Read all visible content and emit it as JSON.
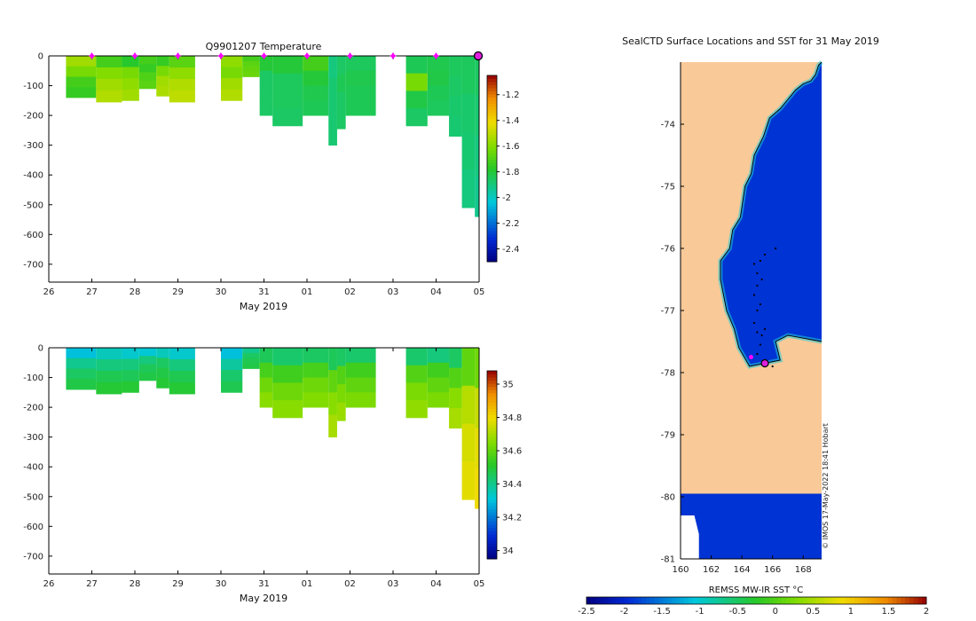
{
  "chart_data": [
    {
      "type": "heatmap",
      "id": "temperature",
      "title": "Q9901207  Temperature",
      "xlabel": "May 2019",
      "ylabel": "",
      "x_ticks": [
        "26",
        "27",
        "28",
        "29",
        "30",
        "31",
        "01",
        "02",
        "03",
        "04",
        "05"
      ],
      "y_ticks": [
        0,
        -100,
        -200,
        -300,
        -400,
        -500,
        -600,
        -700
      ],
      "xlim": [
        26,
        36
      ],
      "ylim": [
        -760,
        0
      ],
      "colorbar": {
        "range": [
          -2.5,
          -1.05
        ],
        "ticks": [
          -1.2,
          -1.4,
          -1.6,
          -1.8,
          -2,
          -2.2,
          -2.4
        ]
      },
      "profile_markers_day": [
        27,
        28,
        29,
        30,
        31,
        32,
        33,
        34,
        35
      ],
      "latest_marker_day": 36,
      "profiles": [
        {
          "x0": 26.4,
          "x1": 27.1,
          "depth": 140,
          "values": [
            -1.55,
            -1.62,
            -1.72,
            -1.75
          ]
        },
        {
          "x0": 27.1,
          "x1": 27.7,
          "depth": 155,
          "values": [
            -1.72,
            -1.6,
            -1.55,
            -1.52
          ]
        },
        {
          "x0": 27.7,
          "x1": 28.1,
          "depth": 150,
          "values": [
            -1.78,
            -1.62,
            -1.58,
            -1.55
          ]
        },
        {
          "x0": 28.1,
          "x1": 28.5,
          "depth": 110,
          "values": [
            -1.72,
            -1.75,
            -1.7,
            -1.68
          ]
        },
        {
          "x0": 28.5,
          "x1": 28.8,
          "depth": 135,
          "values": [
            -1.75,
            -1.62,
            -1.55,
            -1.53
          ]
        },
        {
          "x0": 28.8,
          "x1": 29.4,
          "depth": 155,
          "values": [
            -1.68,
            -1.58,
            -1.52,
            -1.5
          ]
        },
        {
          "x0": 30.0,
          "x1": 30.5,
          "depth": 150,
          "values": [
            -1.58,
            -1.62,
            -1.55,
            -1.52
          ]
        },
        {
          "x0": 30.5,
          "x1": 30.9,
          "depth": 70,
          "values": [
            -1.72,
            -1.68,
            -1.66,
            -1.65
          ]
        },
        {
          "x0": 30.9,
          "x1": 31.2,
          "depth": 200,
          "values": [
            -1.8,
            -1.86,
            -1.86,
            -1.86
          ]
        },
        {
          "x0": 31.2,
          "x1": 31.9,
          "depth": 235,
          "values": [
            -1.8,
            -1.85,
            -1.85,
            -1.86
          ]
        },
        {
          "x0": 31.9,
          "x1": 32.5,
          "depth": 200,
          "values": [
            -1.72,
            -1.8,
            -1.83,
            -1.84
          ]
        },
        {
          "x0": 32.5,
          "x1": 32.7,
          "depth": 300,
          "values": [
            -1.9,
            -1.88,
            -1.88,
            -1.88
          ]
        },
        {
          "x0": 32.7,
          "x1": 32.9,
          "depth": 245,
          "values": [
            -1.86,
            -1.84,
            -1.86,
            -1.86
          ]
        },
        {
          "x0": 32.9,
          "x1": 33.6,
          "depth": 200,
          "values": [
            -1.85,
            -1.83,
            -1.84,
            -1.84
          ]
        },
        {
          "x0": 34.3,
          "x1": 34.8,
          "depth": 235,
          "values": [
            -1.84,
            -1.62,
            -1.82,
            -1.86
          ]
        },
        {
          "x0": 34.8,
          "x1": 35.3,
          "depth": 200,
          "values": [
            -1.83,
            -1.82,
            -1.84,
            -1.85
          ]
        },
        {
          "x0": 35.3,
          "x1": 35.6,
          "depth": 270,
          "values": [
            -1.85,
            -1.86,
            -1.87,
            -1.88
          ]
        },
        {
          "x0": 35.6,
          "x1": 35.9,
          "depth": 510,
          "values": [
            -1.85,
            -1.87,
            -1.88,
            -1.9
          ]
        },
        {
          "x0": 35.9,
          "x1": 36.0,
          "depth": 540,
          "values": [
            -1.86,
            -1.88,
            -1.9,
            -1.92
          ]
        }
      ]
    },
    {
      "type": "heatmap",
      "id": "salinity",
      "title": "",
      "xlabel": "May 2019",
      "ylabel": "",
      "x_ticks": [
        "26",
        "27",
        "28",
        "29",
        "30",
        "31",
        "01",
        "02",
        "03",
        "04",
        "05"
      ],
      "y_ticks": [
        0,
        -100,
        -200,
        -300,
        -400,
        -500,
        -600,
        -700
      ],
      "xlim": [
        26,
        36
      ],
      "ylim": [
        -760,
        0
      ],
      "colorbar": {
        "range": [
          33.95,
          35.08
        ],
        "ticks": [
          35,
          34.8,
          34.6,
          34.4,
          34.2,
          34
        ]
      },
      "profiles": [
        {
          "x0": 26.4,
          "x1": 27.1,
          "depth": 140,
          "values": [
            34.3,
            34.4,
            34.45,
            34.48
          ]
        },
        {
          "x0": 27.1,
          "x1": 27.7,
          "depth": 155,
          "values": [
            34.35,
            34.42,
            34.47,
            34.5
          ]
        },
        {
          "x0": 27.7,
          "x1": 28.1,
          "depth": 150,
          "values": [
            34.33,
            34.42,
            34.46,
            34.5
          ]
        },
        {
          "x0": 28.1,
          "x1": 28.5,
          "depth": 110,
          "values": [
            34.32,
            34.42,
            34.46,
            34.48
          ]
        },
        {
          "x0": 28.5,
          "x1": 28.8,
          "depth": 135,
          "values": [
            34.35,
            34.45,
            34.48,
            34.5
          ]
        },
        {
          "x0": 28.8,
          "x1": 29.4,
          "depth": 155,
          "values": [
            34.33,
            34.42,
            34.47,
            34.5
          ]
        },
        {
          "x0": 30.0,
          "x1": 30.5,
          "depth": 150,
          "values": [
            34.3,
            34.38,
            34.44,
            34.47
          ]
        },
        {
          "x0": 30.5,
          "x1": 30.9,
          "depth": 70,
          "values": [
            34.4,
            34.45,
            34.47,
            34.48
          ]
        },
        {
          "x0": 30.9,
          "x1": 31.2,
          "depth": 200,
          "values": [
            34.46,
            34.56,
            34.62,
            34.66
          ]
        },
        {
          "x0": 31.2,
          "x1": 31.9,
          "depth": 235,
          "values": [
            34.44,
            34.55,
            34.62,
            34.66
          ]
        },
        {
          "x0": 31.9,
          "x1": 32.5,
          "depth": 200,
          "values": [
            34.45,
            34.56,
            34.62,
            34.65
          ]
        },
        {
          "x0": 32.5,
          "x1": 32.7,
          "depth": 300,
          "values": [
            34.46,
            34.6,
            34.66,
            34.7
          ]
        },
        {
          "x0": 32.7,
          "x1": 32.9,
          "depth": 245,
          "values": [
            34.45,
            34.58,
            34.64,
            34.68
          ]
        },
        {
          "x0": 32.9,
          "x1": 33.6,
          "depth": 200,
          "values": [
            34.44,
            34.55,
            34.6,
            34.64
          ]
        },
        {
          "x0": 34.3,
          "x1": 34.8,
          "depth": 235,
          "values": [
            34.44,
            34.58,
            34.64,
            34.67
          ]
        },
        {
          "x0": 34.8,
          "x1": 35.3,
          "depth": 200,
          "values": [
            34.42,
            34.55,
            34.6,
            34.64
          ]
        },
        {
          "x0": 35.3,
          "x1": 35.6,
          "depth": 270,
          "values": [
            34.45,
            34.58,
            34.66,
            34.7
          ]
        },
        {
          "x0": 35.6,
          "x1": 35.9,
          "depth": 510,
          "values": [
            34.6,
            34.72,
            34.76,
            34.78
          ]
        },
        {
          "x0": 35.9,
          "x1": 36.0,
          "depth": 540,
          "values": [
            34.62,
            34.74,
            34.78,
            34.8
          ]
        }
      ]
    },
    {
      "type": "heatmap",
      "id": "sst_map",
      "title": "SealCTD Surface Locations and SST for 31 May 2019",
      "xlabel": "",
      "ylabel": "",
      "x_ticks": [
        "160",
        "162",
        "164",
        "166",
        "168"
      ],
      "y_ticks": [
        "-74",
        "-75",
        "-76",
        "-77",
        "-78",
        "-79",
        "-80",
        "-81"
      ],
      "xlim": [
        160,
        169.2
      ],
      "ylim": [
        -81,
        -73.0
      ],
      "colorbar": {
        "label": "REMSS MW-IR SST °C",
        "range": [
          -2.5,
          2
        ],
        "ticks": [
          "-2.5",
          "-2",
          "-1.5",
          "-1",
          "-0.5",
          "0",
          "0.5",
          "1",
          "1.5",
          "2"
        ]
      },
      "credit": "© IMOS 17-May-2022 18:41 Hobart",
      "ocean_sst": -1.9,
      "coast_lon_lat": [
        [
          169.2,
          -73.0
        ],
        [
          169.0,
          -73.05
        ],
        [
          168.8,
          -73.2
        ],
        [
          168.5,
          -73.3
        ],
        [
          168.0,
          -73.35
        ],
        [
          167.5,
          -73.45
        ],
        [
          167.0,
          -73.6
        ],
        [
          166.5,
          -73.75
        ],
        [
          165.8,
          -73.9
        ],
        [
          165.4,
          -74.2
        ],
        [
          164.8,
          -74.5
        ],
        [
          164.6,
          -74.8
        ],
        [
          164.2,
          -75.0
        ],
        [
          163.9,
          -75.5
        ],
        [
          163.4,
          -75.7
        ],
        [
          163.2,
          -76.0
        ],
        [
          162.6,
          -76.2
        ],
        [
          162.6,
          -76.5
        ],
        [
          163.0,
          -77.0
        ],
        [
          163.5,
          -77.3
        ],
        [
          163.8,
          -77.6
        ],
        [
          164.5,
          -77.9
        ],
        [
          166.5,
          -77.8
        ],
        [
          166.2,
          -77.5
        ],
        [
          167.0,
          -77.4
        ],
        [
          169.2,
          -77.5
        ]
      ],
      "track_lon_lat": [
        [
          166.2,
          -76.0
        ],
        [
          165.5,
          -76.1
        ],
        [
          165.2,
          -76.2
        ],
        [
          164.8,
          -76.25
        ],
        [
          165.0,
          -76.4
        ],
        [
          165.3,
          -76.5
        ],
        [
          165.0,
          -76.6
        ],
        [
          164.8,
          -76.75
        ],
        [
          165.2,
          -76.9
        ],
        [
          165.0,
          -77.0
        ],
        [
          164.8,
          -77.2
        ],
        [
          165.0,
          -77.35
        ],
        [
          165.3,
          -77.4
        ],
        [
          165.5,
          -77.3
        ],
        [
          165.2,
          -77.55
        ],
        [
          165.0,
          -77.7
        ],
        [
          165.5,
          -77.8
        ],
        [
          166.0,
          -77.9
        ]
      ],
      "latest_location": {
        "lon": 165.5,
        "lat": -77.85
      },
      "recent_location": {
        "lon": 164.6,
        "lat": -77.75
      }
    }
  ]
}
